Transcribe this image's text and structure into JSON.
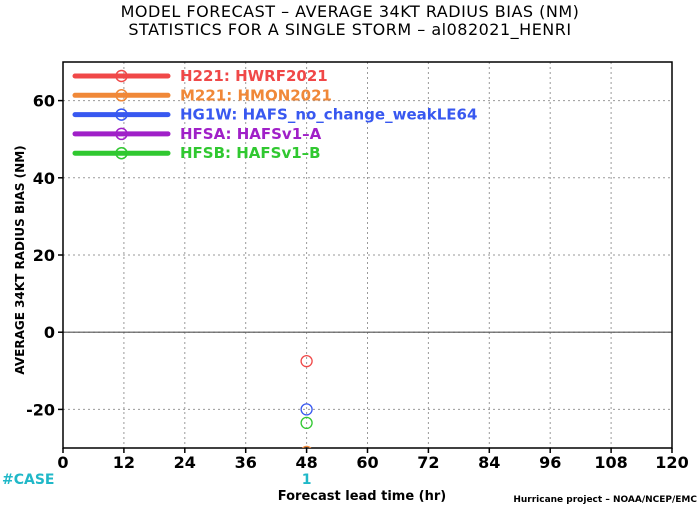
{
  "chart_data": {
    "type": "scatter",
    "title_line1": "MODEL FORECAST – AVERAGE 34KT RADIUS BIAS (NM)",
    "title_line2": "STATISTICS FOR A SINGLE STORM – al082021_HENRI",
    "xlabel": "Forecast lead time (hr)",
    "ylabel": "AVERAGE 34KT RADIUS BIAS (NM)",
    "xlim": [
      0,
      120
    ],
    "ylim": [
      -30,
      70
    ],
    "xticks": [
      0,
      12,
      24,
      36,
      48,
      60,
      72,
      84,
      96,
      108,
      120
    ],
    "yticks": [
      -20,
      0,
      20,
      40,
      60
    ],
    "grid": true,
    "zero_line": true,
    "legend_position": "top-left",
    "series": [
      {
        "name": "H221: HWRF2021",
        "color": "#f04848",
        "points": [
          {
            "x": 48,
            "y": -7.5
          }
        ]
      },
      {
        "name": "M221: HMON2021",
        "color": "#f08838",
        "points": [
          {
            "x": 48,
            "y": -31
          }
        ]
      },
      {
        "name": "HG1W: HAFS_no_change_weakLE64",
        "color": "#3858f0",
        "points": [
          {
            "x": 48,
            "y": -20
          }
        ]
      },
      {
        "name": "HFSA: HAFSv1–A",
        "color": "#a020c8",
        "points": []
      },
      {
        "name": "HFSB: HAFSv1–B",
        "color": "#30c830",
        "points": [
          {
            "x": 48,
            "y": -23.5
          }
        ]
      }
    ],
    "case_count_label": "#CASE",
    "case_counts": [
      {
        "x": 48,
        "count": "1"
      }
    ],
    "case_color": "#20b8c8",
    "credit": "Hurricane project – NOAA/NCEP/EMC"
  }
}
